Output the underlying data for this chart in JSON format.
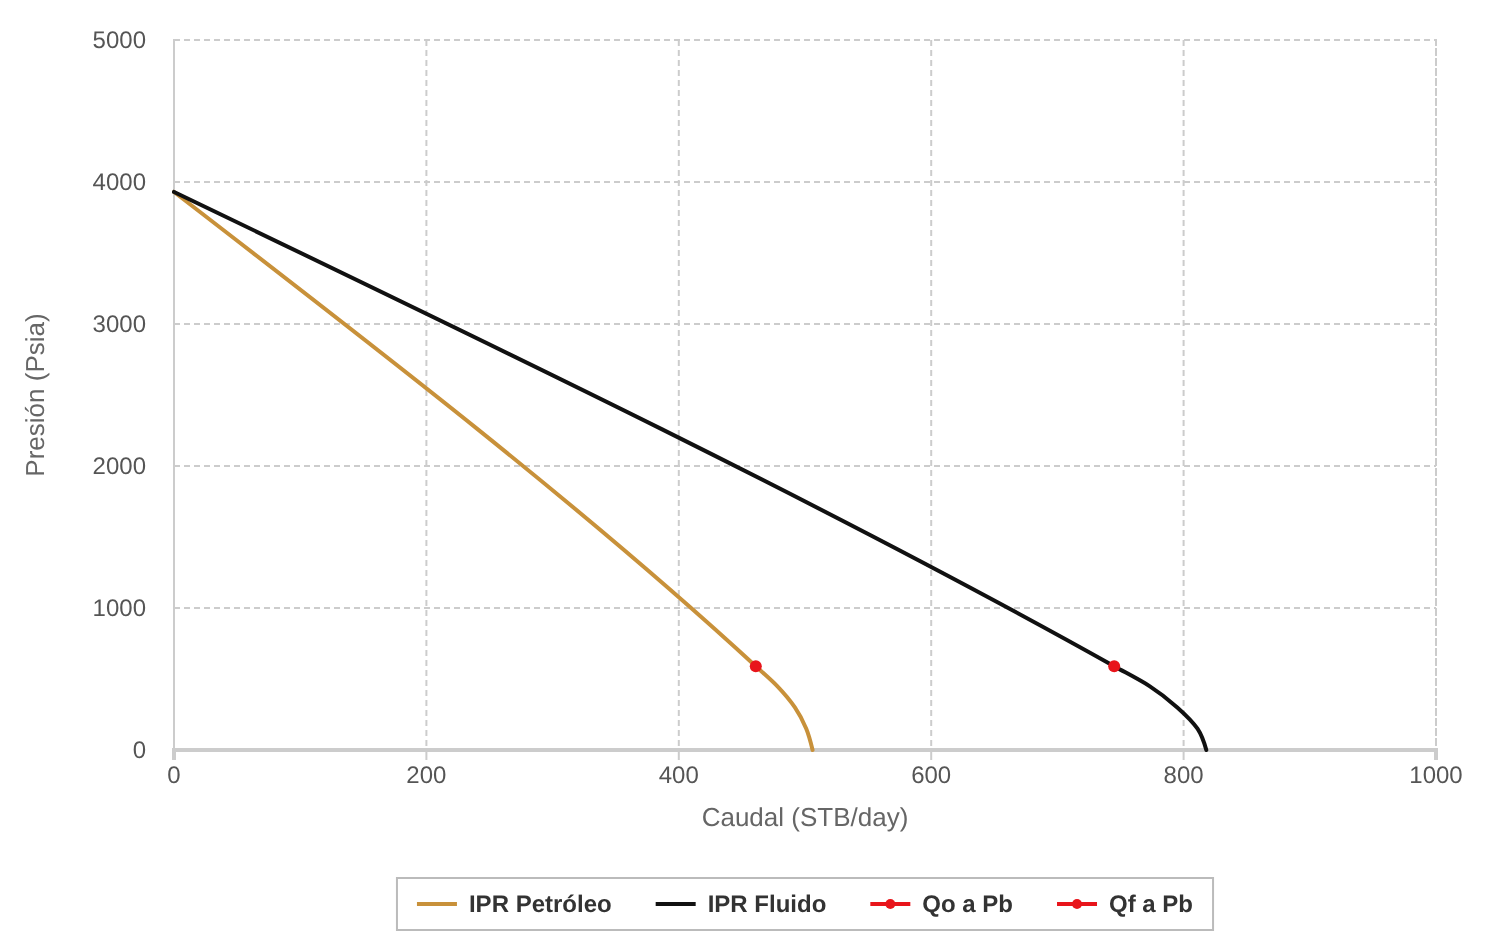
{
  "chart_data": {
    "type": "line",
    "xlabel": "Caudal (STB/day)",
    "ylabel": "Presión (Psia)",
    "xlim": [
      0,
      1000
    ],
    "ylim": [
      0,
      5000
    ],
    "xticks": [
      0,
      200,
      400,
      600,
      800,
      1000
    ],
    "yticks": [
      0,
      1000,
      2000,
      3000,
      4000,
      5000
    ],
    "grid": true,
    "legend": "bottom",
    "series": [
      {
        "name": "IPR Petróleo",
        "color": "#c8913a",
        "marker": "none",
        "x": [
          0,
          461,
          478,
          492,
          501,
          506
        ],
        "values": [
          3930,
          590,
          450,
          300,
          150,
          0
        ]
      },
      {
        "name": "IPR Fluido",
        "color": "#111111",
        "marker": "none",
        "x": [
          0,
          745,
          773,
          795,
          811,
          818
        ],
        "values": [
          3930,
          590,
          450,
          300,
          150,
          0
        ]
      },
      {
        "name": "Qo a Pb",
        "color": "#e8151b",
        "type": "scatter",
        "marker": "circle",
        "x": [
          461
        ],
        "values": [
          590
        ]
      },
      {
        "name": "Qf a Pb",
        "color": "#e8151b",
        "type": "scatter",
        "marker": "circle",
        "x": [
          745
        ],
        "values": [
          590
        ]
      }
    ]
  }
}
